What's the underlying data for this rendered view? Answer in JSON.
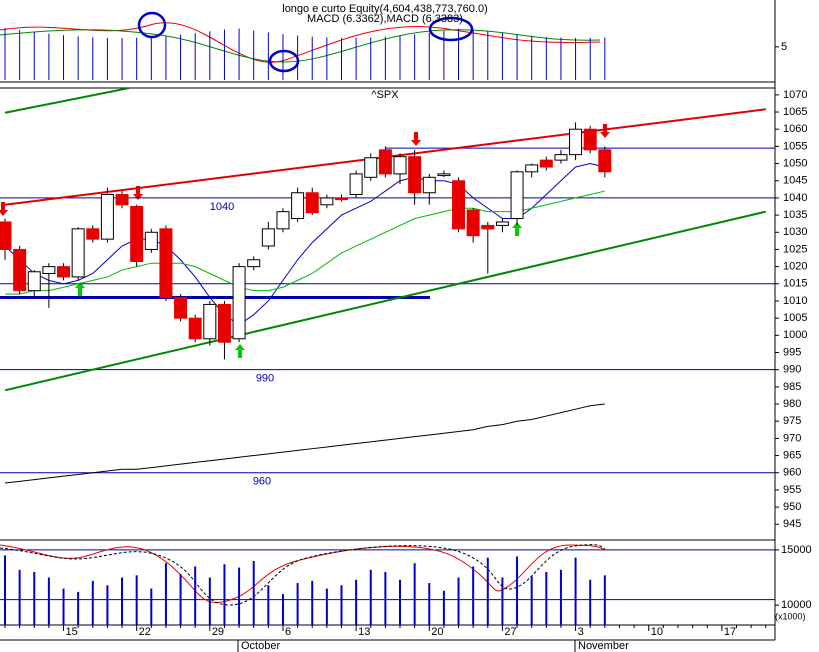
{
  "chart_data": [
    {
      "type": "candlestick",
      "title": "^SPX",
      "categories": [
        null,
        null,
        null,
        null,
        "15",
        null,
        null,
        null,
        null,
        "22",
        null,
        null,
        null,
        null,
        "29",
        null,
        null,
        null,
        null,
        "6",
        null,
        null,
        null,
        null,
        "13",
        null,
        null,
        null,
        null,
        "20",
        null,
        null,
        null,
        null,
        "27",
        null,
        null,
        null,
        null,
        "3",
        null,
        null,
        null,
        null,
        "10",
        null,
        null,
        null,
        null,
        "17",
        null,
        null,
        null
      ],
      "months": [
        "October",
        "November"
      ],
      "open": [
        1033,
        1025,
        1013,
        1018,
        1020,
        1017,
        1031,
        1028,
        1041,
        1037.5,
        1025,
        1031,
        1011,
        1005,
        999,
        1009,
        999,
        1020,
        1026,
        1031,
        1034,
        1041.5,
        1038,
        1040,
        1041,
        1046,
        1054,
        1047,
        1052,
        1041.5,
        1046.5,
        1045,
        1036.5,
        1032,
        1032,
        1034,
        1047.6,
        1051,
        1051,
        1052.6,
        1060,
        1054,
        null,
        null,
        null,
        null,
        null,
        null,
        null,
        null,
        null,
        null,
        null
      ],
      "high": [
        1034,
        1026,
        1019,
        1021,
        1021,
        1031.5,
        1032,
        1043,
        1042,
        1038,
        1031,
        1032,
        1012,
        1006,
        1010,
        1010,
        1021,
        1023,
        1033,
        1037,
        1043,
        1043,
        1041,
        1041,
        1048,
        1053,
        1055,
        1053,
        1054,
        1047,
        1048,
        1046,
        1037,
        1033,
        1034,
        1048,
        1050,
        1052,
        1054,
        1062,
        1061,
        1055,
        null,
        null,
        null,
        null,
        null,
        null,
        null,
        null,
        null,
        null,
        null
      ],
      "low": [
        1022,
        1012,
        1011,
        1008,
        1016,
        1016,
        1027,
        1027,
        1037,
        1020,
        1024,
        1010,
        1004,
        998,
        997,
        993,
        998,
        1019,
        1025,
        1030,
        1033,
        1035,
        1037,
        1039,
        1040,
        1045,
        1046,
        1044,
        1038,
        1038,
        1046,
        1030,
        1027,
        1018,
        1030,
        1032,
        1046,
        1048,
        1050,
        1051,
        1053,
        1046,
        null,
        null,
        null,
        null,
        null,
        null,
        null,
        null,
        null,
        null,
        null
      ],
      "close": [
        1025,
        1013,
        1018.5,
        1020,
        1017,
        1031,
        1028,
        1041,
        1038,
        1021.5,
        1030,
        1011,
        1005,
        999,
        1009,
        998,
        1020,
        1022,
        1031,
        1036,
        1041.5,
        1035.7,
        1040,
        1039.5,
        1047,
        1051.7,
        1047,
        1052,
        1041.5,
        1046,
        1047,
        1031,
        1029,
        1031,
        1033,
        1047.6,
        1049.6,
        1049,
        1052.6,
        1060,
        1054,
        1047.6,
        null,
        null,
        null,
        null,
        null,
        null,
        null,
        null,
        null,
        null,
        null
      ],
      "up_color": "#ffffff",
      "down_color": "#e80000",
      "series": [
        {
          "color": "#0000cc",
          "values": [
            1026,
            1022,
            1018,
            1016,
            1015,
            1016,
            1018,
            1022,
            1026,
            1028,
            1028,
            1026,
            1022,
            1017,
            1011,
            1006,
            1003,
            1006,
            1010,
            1016,
            1022,
            1027,
            1031,
            1035,
            1037,
            1039,
            1042,
            1045,
            1046,
            1045,
            1045,
            1044,
            1040,
            1037,
            1034,
            1034,
            1037,
            1041,
            1045,
            1049,
            1050,
            1049,
            null,
            null,
            null,
            null,
            null,
            null,
            null,
            null,
            null,
            null,
            null
          ]
        },
        {
          "color": "#00bb00",
          "values": [
            1012,
            1012,
            1013,
            1013,
            1014,
            1015,
            1016,
            1017,
            1019,
            1020,
            1021,
            1021,
            1021,
            1020,
            1018,
            1016,
            1014,
            1013,
            1013,
            1014,
            1016,
            1018,
            1021,
            1024,
            1026,
            1028,
            1030,
            1032,
            1034,
            1035,
            1036,
            1037,
            1037,
            1036,
            1036,
            1036,
            1037,
            1038,
            1039,
            1040,
            1041,
            1042,
            null,
            null,
            null,
            null,
            null,
            null,
            null,
            null,
            null,
            null,
            null
          ]
        },
        {
          "color": "#000000",
          "values": [
            957,
            957.5,
            958,
            958.5,
            959,
            959.5,
            960,
            960.5,
            961,
            961,
            961.5,
            962,
            962.5,
            963,
            963.5,
            964,
            964.5,
            965,
            965.5,
            966,
            966.5,
            967,
            967.5,
            968,
            968.5,
            969,
            969.5,
            970,
            970.5,
            971,
            971.5,
            972,
            972.5,
            973.5,
            974,
            975,
            975.5,
            976.5,
            977.5,
            978.5,
            979.5,
            980,
            null,
            null,
            null,
            null,
            null,
            null,
            null,
            null,
            null,
            null,
            null
          ]
        }
      ],
      "labeled_levels": [
        1040,
        990,
        960
      ],
      "levels": [
        1015,
        1054.5,
        1011
      ],
      "level_color": "#0000aa",
      "trendlines": [
        {
          "color": "#e00000",
          "start": [
            0,
            1038
          ],
          "end": [
            52,
            1065.8
          ]
        },
        {
          "color": "#008800",
          "start": [
            0,
            984
          ],
          "end": [
            52,
            1036
          ]
        },
        {
          "color": "#008800",
          "start": [
            0,
            1064.8
          ],
          "end": [
            8.5,
            1072
          ]
        }
      ],
      "ylim": [
        941,
        1072
      ],
      "yticks": [
        1070,
        1065,
        1060,
        1055,
        1050,
        1045,
        1040,
        1035,
        1030,
        1025,
        1020,
        1015,
        1010,
        1005,
        1000,
        995,
        990,
        985,
        980,
        975,
        970,
        965,
        960,
        955,
        950,
        945
      ]
    },
    {
      "type": "bar",
      "unit_label": "(x1000)",
      "color": "#0000cc",
      "values": [
        14500,
        13200,
        13000,
        12500,
        11500,
        11200,
        12200,
        11800,
        12500,
        12700,
        11500,
        13800,
        12800,
        13500,
        12500,
        13700,
        13400,
        14000,
        11800,
        11000,
        12000,
        12200,
        11500,
        11800,
        12300,
        13200,
        13000,
        12300,
        13800,
        12000,
        11300,
        12500,
        13500,
        14300,
        12500,
        14400,
        12600,
        13000,
        13200,
        14300,
        12300,
        12700,
        null,
        null,
        null,
        null,
        null,
        null,
        null,
        null,
        null,
        null,
        null
      ],
      "ylim": [
        8200,
        15900
      ],
      "yticks": [
        15000,
        10000
      ],
      "levels": [
        15000,
        10500
      ]
    },
    {
      "type": "indicator",
      "title": "longo e curto Equity(4,604,438,773,760.0)",
      "subtitle": "MACD (6.3362),MACD (6.3383)",
      "ylim": [
        2,
        9
      ],
      "yticks": [
        5
      ]
    }
  ]
}
